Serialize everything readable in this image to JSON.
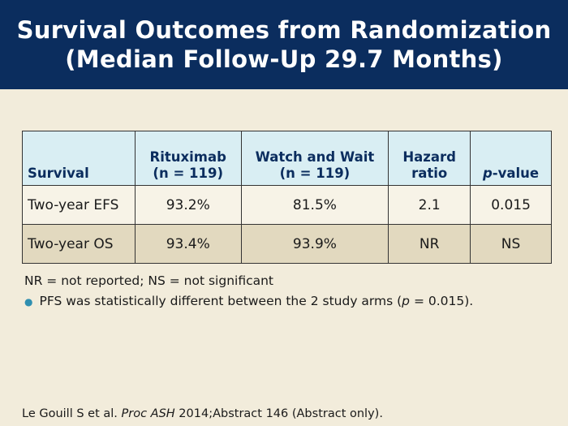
{
  "title": {
    "line1": "Survival Outcomes from Randomization",
    "line2": "(Median Follow-Up 29.7 Months)"
  },
  "table": {
    "headers": {
      "survival": "Survival",
      "rituximab_l1": "Rituximab",
      "rituximab_l2": "(n = 119)",
      "watch_l1": "Watch and Wait",
      "watch_l2": "(n = 119)",
      "hazard_l1": "Hazard",
      "hazard_l2": "ratio",
      "pvalue_italic": "p",
      "pvalue_rest": "-value"
    },
    "rows": [
      {
        "survival": "Two-year EFS",
        "rituximab": "93.2%",
        "watch": "81.5%",
        "hazard": "2.1",
        "pvalue": "0.015"
      },
      {
        "survival": "Two-year OS",
        "rituximab": "93.4%",
        "watch": "93.9%",
        "hazard": "NR",
        "pvalue": "NS"
      }
    ]
  },
  "footnote": "NR = not reported; NS = not significant",
  "bullet": {
    "before": "PFS was statistically different between the 2 study arms (",
    "italic": "p",
    "after": " = 0.015)."
  },
  "citation": {
    "authors": "Le Gouill S et al. ",
    "journal": "Proc ASH",
    "rest": " 2014;Abstract 146 (Abstract only)."
  }
}
